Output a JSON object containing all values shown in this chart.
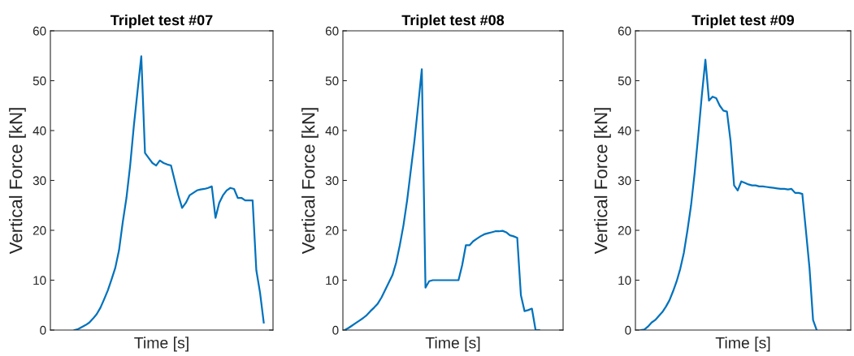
{
  "chart_data": [
    {
      "type": "line",
      "title": "Triplet test #07",
      "xlabel": "Time [s]",
      "ylabel": "Vertical Force [kN]",
      "ylim": [
        0,
        60
      ],
      "yticks": [
        0,
        10,
        20,
        30,
        40,
        50,
        60
      ],
      "tick_labels": "y",
      "grid": false,
      "marker": "none",
      "line_style": "solid",
      "categories": [
        null,
        null,
        null,
        null,
        null,
        null,
        null,
        null,
        null,
        null,
        null,
        null,
        null,
        null,
        null,
        null,
        null,
        null,
        null,
        null,
        null,
        null,
        null,
        null,
        null,
        null,
        null,
        null,
        null,
        null,
        null,
        null,
        null,
        null,
        null,
        null,
        null,
        null,
        null,
        null,
        null,
        null,
        null,
        null,
        null,
        null,
        null,
        null,
        null,
        null,
        null,
        null,
        null,
        null,
        null,
        null,
        null,
        null,
        null,
        null
      ],
      "series": [
        {
          "color": "#0072bd",
          "values": [
            null,
            null,
            null,
            null,
            null,
            null,
            0,
            0.2,
            0.6,
            1.0,
            1.5,
            2.3,
            3.2,
            4.5,
            6.2,
            8,
            10.2,
            12.5,
            16,
            21.6,
            26.5,
            33,
            41,
            48,
            54.9,
            35.5,
            34.5,
            33.5,
            33,
            34,
            33.5,
            33.2,
            33,
            30,
            27,
            24.5,
            25.5,
            27,
            27.5,
            28,
            28.2,
            28.3,
            28.5,
            28.8,
            22.5,
            25.5,
            27,
            28,
            28.5,
            28.3,
            26.5,
            26.5,
            26,
            26,
            26,
            12,
            7.5,
            1.5,
            null,
            null
          ]
        }
      ]
    },
    {
      "type": "line",
      "title": "Triplet test #08",
      "xlabel": "Time [s]",
      "ylabel": "Vertical Force [kN]",
      "ylim": [
        0,
        60
      ],
      "yticks": [
        0,
        10,
        20,
        30,
        40,
        50,
        60
      ],
      "tick_labels": "y",
      "grid": false,
      "marker": "none",
      "line_style": "solid",
      "categories": [
        null,
        null,
        null,
        null,
        null,
        null,
        null,
        null,
        null,
        null,
        null,
        null,
        null,
        null,
        null,
        null,
        null,
        null,
        null,
        null,
        null,
        null,
        null,
        null,
        null,
        null,
        null,
        null,
        null,
        null,
        null,
        null,
        null,
        null,
        null,
        null,
        null,
        null,
        null,
        null,
        null,
        null,
        null,
        null,
        null,
        null,
        null,
        null,
        null,
        null,
        null,
        null,
        null,
        null,
        null,
        null,
        null,
        null,
        null,
        null
      ],
      "series": [
        {
          "color": "#0072bd",
          "values": [
            0,
            0.4,
            0.9,
            1.4,
            1.9,
            2.4,
            3.0,
            3.8,
            4.5,
            5.3,
            6.5,
            8,
            9.5,
            11,
            13.5,
            17,
            21,
            26,
            32,
            38,
            45,
            52.3,
            8.5,
            9.8,
            10,
            10,
            10,
            10,
            10,
            10,
            10,
            10,
            13,
            17,
            17,
            17.8,
            18.3,
            18.8,
            19.2,
            19.4,
            19.6,
            19.8,
            19.8,
            19.9,
            19.6,
            19,
            18.8,
            18.5,
            7,
            3.8,
            4,
            4.3,
            0,
            0,
            null,
            null,
            null,
            null,
            null,
            null
          ]
        }
      ]
    },
    {
      "type": "line",
      "title": "Triplet test #09",
      "xlabel": "Time [s]",
      "ylabel": "Vertical Force [kN]",
      "ylim": [
        0,
        60
      ],
      "yticks": [
        0,
        10,
        20,
        30,
        40,
        50,
        60
      ],
      "tick_labels": "y",
      "grid": false,
      "marker": "none",
      "line_style": "solid",
      "categories": [
        null,
        null,
        null,
        null,
        null,
        null,
        null,
        null,
        null,
        null,
        null,
        null,
        null,
        null,
        null,
        null,
        null,
        null,
        null,
        null,
        null,
        null,
        null,
        null,
        null,
        null,
        null,
        null,
        null,
        null,
        null,
        null,
        null,
        null,
        null,
        null,
        null,
        null,
        null,
        null,
        null,
        null,
        null,
        null,
        null,
        null,
        null,
        null,
        null,
        null,
        null,
        null,
        null,
        null,
        null,
        null,
        null,
        null,
        null,
        null
      ],
      "series": [
        {
          "color": "#0072bd",
          "values": [
            null,
            0,
            0.1,
            0.7,
            1.5,
            2,
            2.8,
            3.6,
            4.7,
            6,
            7.8,
            9.8,
            12.3,
            15.5,
            20,
            25,
            31.5,
            39,
            47,
            54.2,
            46,
            46.8,
            46.5,
            45,
            44,
            43.8,
            38,
            29,
            28,
            29.8,
            29.5,
            29.2,
            29,
            29,
            28.8,
            28.8,
            28.7,
            28.6,
            28.5,
            28.4,
            28.3,
            28.3,
            28.2,
            28.3,
            27.5,
            27.5,
            27.3,
            20,
            12.5,
            2,
            0,
            null,
            null,
            null,
            null,
            null,
            null,
            null,
            null,
            null
          ]
        }
      ]
    }
  ]
}
